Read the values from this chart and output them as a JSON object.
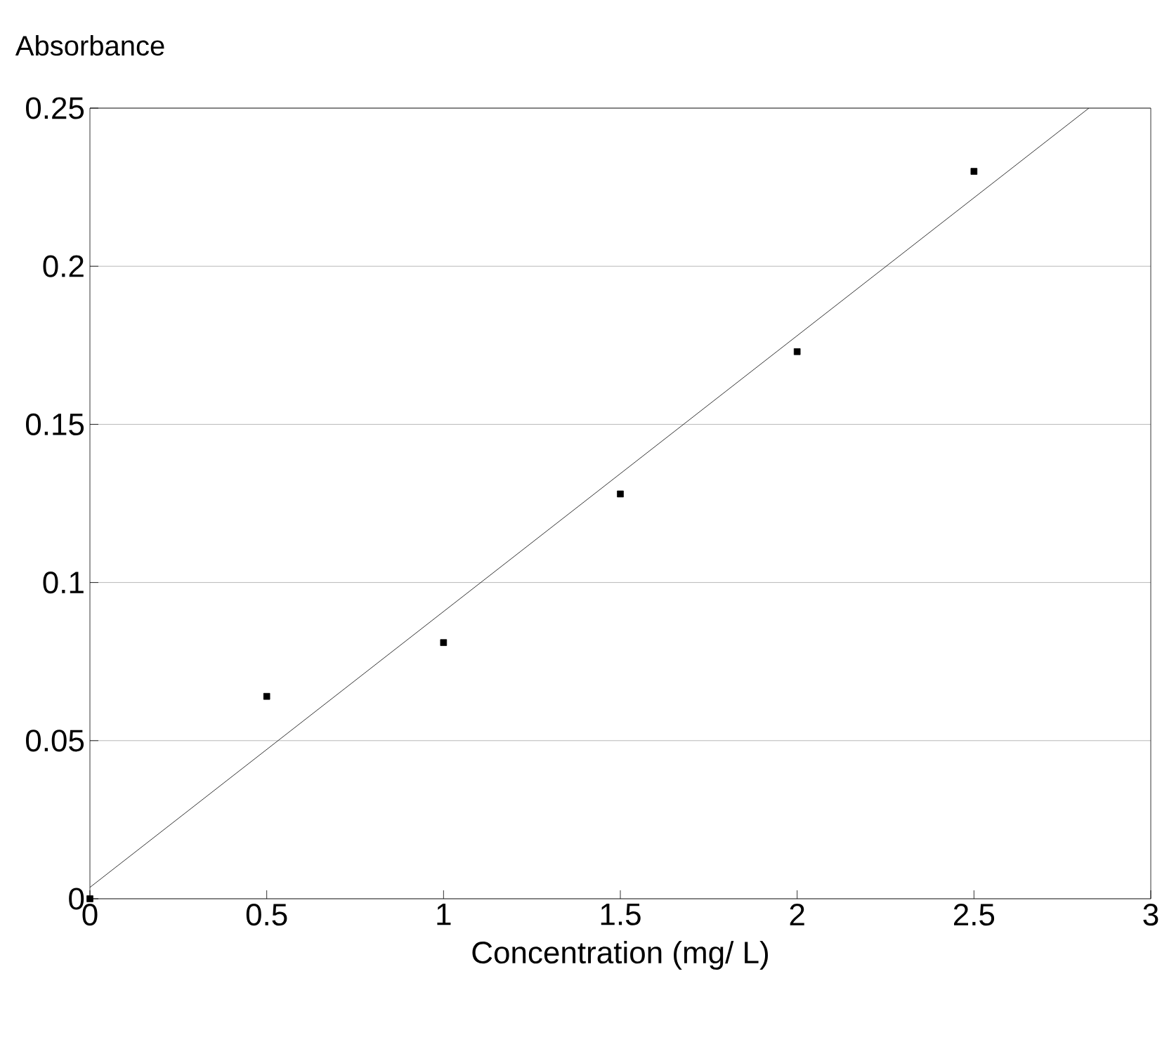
{
  "chart_data": {
    "type": "scatter",
    "xlabel": "Concentration (mg/ L)",
    "ylabel": "Absorbance",
    "xlim": [
      0,
      3
    ],
    "ylim": [
      0,
      0.25
    ],
    "xticks": [
      0,
      0.5,
      1,
      1.5,
      2,
      2.5,
      3
    ],
    "yticks": [
      0,
      0.05,
      0.1,
      0.15,
      0.2,
      0.25
    ],
    "grid": "y",
    "series": [
      {
        "color": "#000000",
        "marker": "square",
        "x": [
          0,
          0.5,
          1,
          1.5,
          2,
          2.5
        ],
        "values": [
          0,
          0.064,
          0.081,
          0.128,
          0.173,
          0.23
        ]
      },
      {
        "type": "line",
        "color": "#000000",
        "marker": "none",
        "line_style": "solid",
        "x": [
          0,
          2.825
        ],
        "values": [
          0.0036,
          0.25
        ]
      }
    ]
  }
}
